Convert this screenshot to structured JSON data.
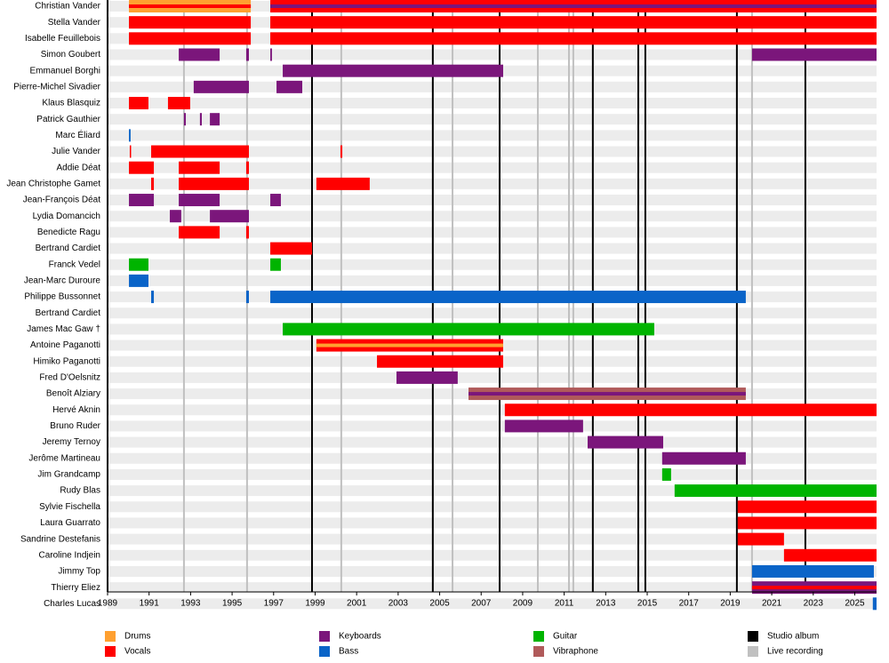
{
  "chart_data": {
    "type": "timeline",
    "xlim": [
      1989,
      2026.05
    ],
    "xticks": [
      1989,
      1991,
      1993,
      1995,
      1997,
      1999,
      2001,
      2003,
      2005,
      2007,
      2009,
      2011,
      2013,
      2015,
      2017,
      2019,
      2021,
      2023,
      2025
    ],
    "roles": [
      {
        "name": "Drums",
        "color": "#ffa030"
      },
      {
        "name": "Vocals",
        "color": "#ff0000"
      },
      {
        "name": "Keyboards",
        "color": "#7b167b"
      },
      {
        "name": "Bass",
        "color": "#0a64c8"
      },
      {
        "name": "Guitar",
        "color": "#00b400"
      },
      {
        "name": "Vibraphone",
        "color": "#b05a5a"
      }
    ],
    "events": [
      {
        "name": "Studio album",
        "color": "#000000",
        "values": [
          1998.85,
          2004.67,
          2007.89,
          2012.38,
          2014.57,
          2014.91,
          2019.32,
          2022.62
        ]
      },
      {
        "name": "Live recording",
        "color": "#c0c0c0",
        "values": [
          1992.68,
          1995.72,
          2000.26,
          2005.62,
          2009.73,
          2011.23,
          2011.44,
          2020.05
        ]
      }
    ],
    "members": [
      {
        "name": "Christian Vander",
        "periods": [
          {
            "start": 1990.03,
            "end": 1995.9,
            "role": "Drums",
            "stripe": "Vocals"
          },
          {
            "start": 1996.84,
            "end": 2026.05,
            "role": "Vocals",
            "stripe": "Keyboards"
          }
        ]
      },
      {
        "name": "Stella Vander",
        "periods": [
          {
            "start": 1990.03,
            "end": 1995.9,
            "role": "Vocals"
          },
          {
            "start": 1996.84,
            "end": 2026.05,
            "role": "Vocals"
          }
        ]
      },
      {
        "name": "Isabelle Feuillebois",
        "periods": [
          {
            "start": 1990.03,
            "end": 1995.9,
            "role": "Vocals"
          },
          {
            "start": 1996.84,
            "end": 2026.05,
            "role": "Vocals"
          }
        ]
      },
      {
        "name": "Simon Goubert",
        "periods": [
          {
            "start": 1992.43,
            "end": 1994.4,
            "role": "Keyboards"
          },
          {
            "start": 1995.68,
            "end": 1995.81,
            "role": "Keyboards"
          },
          {
            "start": 1996.84,
            "end": 1996.92,
            "role": "Keyboards"
          },
          {
            "start": 2020.05,
            "end": 2026.05,
            "role": "Keyboards"
          }
        ]
      },
      {
        "name": "Emmanuel Borghi",
        "periods": [
          {
            "start": 1997.44,
            "end": 2008.06,
            "role": "Keyboards"
          }
        ]
      },
      {
        "name": "Pierre-Michel Sivadier",
        "periods": [
          {
            "start": 1993.15,
            "end": 1995.81,
            "role": "Keyboards"
          },
          {
            "start": 1997.14,
            "end": 1998.38,
            "role": "Keyboards"
          }
        ]
      },
      {
        "name": "Klaus Blasquiz",
        "periods": [
          {
            "start": 1990.03,
            "end": 1990.97,
            "role": "Vocals"
          },
          {
            "start": 1991.91,
            "end": 1992.98,
            "role": "Vocals"
          }
        ]
      },
      {
        "name": "Patrick Gauthier",
        "periods": [
          {
            "start": 1992.68,
            "end": 1992.77,
            "role": "Keyboards"
          },
          {
            "start": 1993.45,
            "end": 1993.54,
            "role": "Keyboards"
          },
          {
            "start": 1993.93,
            "end": 1994.4,
            "role": "Keyboards"
          }
        ]
      },
      {
        "name": "Marc Éliard",
        "periods": [
          {
            "start": 1990.03,
            "end": 1990.11,
            "role": "Bass"
          }
        ]
      },
      {
        "name": "Julie Vander",
        "periods": [
          {
            "start": 1990.07,
            "end": 1990.11,
            "role": "Vocals"
          },
          {
            "start": 1991.1,
            "end": 1995.81,
            "role": "Vocals"
          },
          {
            "start": 2000.22,
            "end": 2000.31,
            "role": "Vocals"
          }
        ]
      },
      {
        "name": "Addie Déat",
        "periods": [
          {
            "start": 1990.03,
            "end": 1991.23,
            "role": "Vocals"
          },
          {
            "start": 1992.43,
            "end": 1994.4,
            "role": "Vocals"
          },
          {
            "start": 1995.68,
            "end": 1995.81,
            "role": "Vocals"
          }
        ]
      },
      {
        "name": "Jean Christophe Gamet",
        "periods": [
          {
            "start": 1991.1,
            "end": 1991.23,
            "role": "Vocals"
          },
          {
            "start": 1992.43,
            "end": 1995.81,
            "role": "Vocals"
          },
          {
            "start": 1999.06,
            "end": 2001.63,
            "role": "Vocals"
          }
        ]
      },
      {
        "name": "Jean-François Déat",
        "periods": [
          {
            "start": 1990.03,
            "end": 1991.23,
            "role": "Keyboards"
          },
          {
            "start": 1992.43,
            "end": 1994.4,
            "role": "Keyboards"
          },
          {
            "start": 1996.84,
            "end": 1997.35,
            "role": "Keyboards"
          }
        ]
      },
      {
        "name": "Lydia Domancich",
        "periods": [
          {
            "start": 1992.0,
            "end": 1992.55,
            "role": "Keyboards"
          },
          {
            "start": 1993.93,
            "end": 1995.81,
            "role": "Keyboards"
          }
        ]
      },
      {
        "name": "Benedicte Ragu",
        "periods": [
          {
            "start": 1992.43,
            "end": 1994.4,
            "role": "Vocals"
          },
          {
            "start": 1995.68,
            "end": 1995.81,
            "role": "Vocals"
          }
        ]
      },
      {
        "name": "Bertrand Cardiet",
        "periods": [
          {
            "start": 1996.84,
            "end": 1998.85,
            "role": "Vocals"
          }
        ]
      },
      {
        "name": "Franck Vedel",
        "periods": [
          {
            "start": 1990.03,
            "end": 1990.97,
            "role": "Guitar"
          },
          {
            "start": 1996.84,
            "end": 1997.35,
            "role": "Guitar"
          }
        ]
      },
      {
        "name": "Jean-Marc Duroure",
        "periods": [
          {
            "start": 1990.03,
            "end": 1990.97,
            "role": "Bass"
          }
        ]
      },
      {
        "name": "Philippe Bussonnet",
        "periods": [
          {
            "start": 1991.1,
            "end": 1991.23,
            "role": "Bass"
          },
          {
            "start": 1995.68,
            "end": 1995.81,
            "role": "Bass"
          },
          {
            "start": 1996.84,
            "end": 2019.75,
            "role": "Bass"
          }
        ]
      },
      {
        "name": "Bertrand Cardiet",
        "periods": []
      },
      {
        "name": "James Mac Gaw  †",
        "periods": [
          {
            "start": 1997.44,
            "end": 2015.34,
            "role": "Guitar"
          }
        ]
      },
      {
        "name": "Antoine Paganotti",
        "periods": [
          {
            "start": 1999.06,
            "end": 2008.06,
            "role": "Vocals",
            "stripe": "Drums"
          }
        ]
      },
      {
        "name": "Himiko Paganotti",
        "periods": [
          {
            "start": 2001.98,
            "end": 2008.06,
            "role": "Vocals"
          }
        ]
      },
      {
        "name": "Fred D'Oelsnitz",
        "periods": [
          {
            "start": 2002.92,
            "end": 2005.87,
            "role": "Keyboards"
          }
        ]
      },
      {
        "name": "Benoît Alziary",
        "periods": [
          {
            "start": 2006.39,
            "end": 2019.75,
            "role": "Vibraphone",
            "stripe": "Keyboards"
          }
        ]
      },
      {
        "name": "Hervé Aknin",
        "periods": [
          {
            "start": 2008.14,
            "end": 2026.05,
            "role": "Vocals"
          }
        ]
      },
      {
        "name": "Bruno Ruder",
        "periods": [
          {
            "start": 2008.14,
            "end": 2011.91,
            "role": "Keyboards"
          }
        ]
      },
      {
        "name": "Jeremy Ternoy",
        "periods": [
          {
            "start": 2012.13,
            "end": 2015.77,
            "role": "Keyboards"
          }
        ]
      },
      {
        "name": "Jerôme Martineau",
        "periods": [
          {
            "start": 2015.72,
            "end": 2019.75,
            "role": "Keyboards"
          }
        ]
      },
      {
        "name": "Jim Grandcamp",
        "periods": [
          {
            "start": 2015.72,
            "end": 2016.15,
            "role": "Guitar"
          }
        ]
      },
      {
        "name": "Rudy Blas",
        "periods": [
          {
            "start": 2016.32,
            "end": 2026.05,
            "role": "Guitar"
          }
        ]
      },
      {
        "name": "Sylvie Fischella",
        "periods": [
          {
            "start": 2019.36,
            "end": 2026.05,
            "role": "Vocals"
          }
        ]
      },
      {
        "name": "Laura Guarrato",
        "periods": [
          {
            "start": 2019.36,
            "end": 2026.05,
            "role": "Vocals"
          }
        ]
      },
      {
        "name": "Sandrine Destefanis",
        "periods": [
          {
            "start": 2019.36,
            "end": 2021.59,
            "role": "Vocals"
          }
        ]
      },
      {
        "name": "Caroline Indjein",
        "periods": [
          {
            "start": 2021.59,
            "end": 2026.05,
            "role": "Vocals"
          }
        ]
      },
      {
        "name": "Jimmy Top",
        "periods": [
          {
            "start": 2020.05,
            "end": 2025.92,
            "role": "Bass"
          }
        ]
      },
      {
        "name": "Thierry Eliez",
        "periods": [
          {
            "start": 2020.05,
            "end": 2026.05,
            "role": "Keyboards",
            "stripe": "Vocals"
          }
        ]
      },
      {
        "name": "Charles Lucas",
        "periods": [
          {
            "start": 2025.87,
            "end": 2026.05,
            "role": "Bass"
          }
        ]
      }
    ]
  }
}
